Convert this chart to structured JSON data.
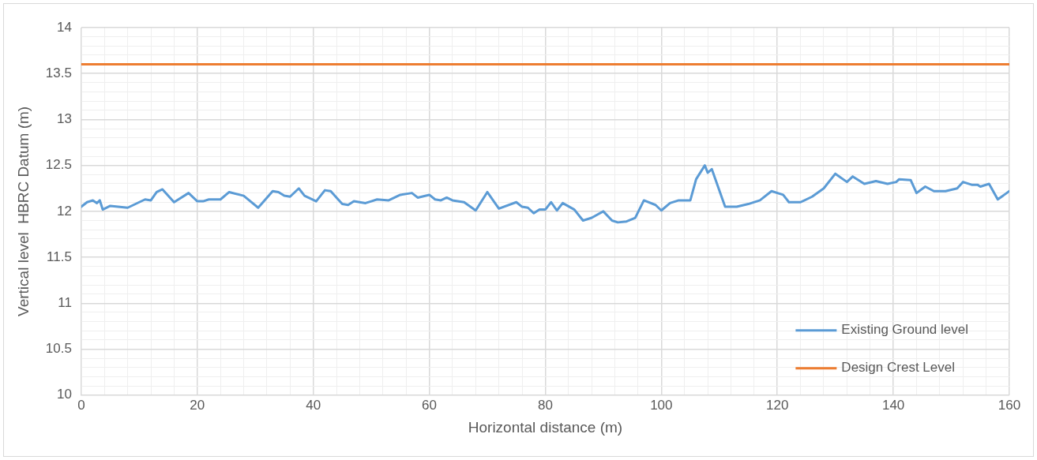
{
  "chart_data": {
    "type": "line",
    "xlabel": "Horizontal distance (m)",
    "ylabel": "Vertical level  HBRC Datum (m)",
    "xlim": [
      0,
      160
    ],
    "ylim": [
      10,
      14
    ],
    "xticks": [
      0,
      {
        "value": 4,
        "label": null
      },
      {
        "value": 8,
        "label": null
      },
      {
        "value": 12,
        "label": null
      },
      {
        "value": 16,
        "label": null
      },
      20,
      {
        "value": 24,
        "label": null
      },
      {
        "value": 28,
        "label": null
      },
      {
        "value": 32,
        "label": null
      },
      {
        "value": 36,
        "label": null
      },
      40,
      {
        "value": 44,
        "label": null
      },
      {
        "value": 48,
        "label": null
      },
      {
        "value": 52,
        "label": null
      },
      {
        "value": 56,
        "label": null
      },
      60,
      {
        "value": 64,
        "label": null
      },
      {
        "value": 68,
        "label": null
      },
      {
        "value": 72,
        "label": null
      },
      {
        "value": 76,
        "label": null
      },
      80,
      {
        "value": 84,
        "label": null
      },
      {
        "value": 88,
        "label": null
      },
      {
        "value": 92,
        "label": null
      },
      {
        "value": 96,
        "label": null
      },
      100,
      {
        "value": 104,
        "label": null
      },
      {
        "value": 108,
        "label": null
      },
      {
        "value": 112,
        "label": null
      },
      {
        "value": 116,
        "label": null
      },
      120,
      {
        "value": 124,
        "label": null
      },
      {
        "value": 128,
        "label": null
      },
      {
        "value": 132,
        "label": null
      },
      {
        "value": 136,
        "label": null
      },
      140,
      {
        "value": 144,
        "label": null
      },
      {
        "value": 148,
        "label": null
      },
      {
        "value": 152,
        "label": null
      },
      {
        "value": 156,
        "label": null
      },
      160
    ],
    "yticks": [
      10,
      {
        "value": 10.1,
        "label": null
      },
      {
        "value": 10.2,
        "label": null
      },
      {
        "value": 10.3,
        "label": null
      },
      {
        "value": 10.4,
        "label": null
      },
      10.5,
      {
        "value": 10.6,
        "label": null
      },
      {
        "value": 10.7,
        "label": null
      },
      {
        "value": 10.8,
        "label": null
      },
      {
        "value": 10.9,
        "label": null
      },
      11,
      {
        "value": 11.1,
        "label": null
      },
      {
        "value": 11.2,
        "label": null
      },
      {
        "value": 11.3,
        "label": null
      },
      {
        "value": 11.4,
        "label": null
      },
      11.5,
      {
        "value": 11.6,
        "label": null
      },
      {
        "value": 11.7,
        "label": null
      },
      {
        "value": 11.8,
        "label": null
      },
      {
        "value": 11.9,
        "label": null
      },
      12,
      {
        "value": 12.1,
        "label": null
      },
      {
        "value": 12.2,
        "label": null
      },
      {
        "value": 12.3,
        "label": null
      },
      {
        "value": 12.4,
        "label": null
      },
      12.5,
      {
        "value": 12.6,
        "label": null
      },
      {
        "value": 12.7,
        "label": null
      },
      {
        "value": 12.8,
        "label": null
      },
      {
        "value": 12.9,
        "label": null
      },
      13,
      {
        "value": 13.1,
        "label": null
      },
      {
        "value": 13.2,
        "label": null
      },
      {
        "value": 13.3,
        "label": null
      },
      {
        "value": 13.4,
        "label": null
      },
      13.5,
      {
        "value": 13.6,
        "label": null
      },
      {
        "value": 13.7,
        "label": null
      },
      {
        "value": 13.8,
        "label": null
      },
      {
        "value": 13.9,
        "label": null
      },
      14
    ],
    "grid": true,
    "legend": "bottom right",
    "marker": "none",
    "line_style": "solid",
    "series": [
      {
        "name": "Existing Ground level",
        "color": "#5b9bd5",
        "x": [
          0,
          1,
          2,
          2.7,
          3.2,
          3.7,
          5,
          8,
          10,
          11,
          12,
          13,
          14,
          16,
          18.5,
          20,
          21,
          22,
          24,
          25.5,
          28,
          30.5,
          33,
          34,
          35,
          36,
          37.5,
          38.5,
          40.5,
          42,
          43,
          45,
          46,
          47,
          49,
          50,
          51,
          53,
          55,
          57,
          58,
          60,
          61,
          62,
          63,
          64,
          66,
          68,
          70,
          72,
          75,
          76,
          77,
          78,
          79,
          80,
          81,
          82,
          83,
          85,
          86.5,
          88,
          90,
          91.5,
          92.5,
          94,
          95.5,
          97,
          99,
          100,
          101.5,
          103,
          105,
          106,
          107.5,
          108,
          108.7,
          111,
          113,
          115,
          117,
          119,
          121,
          122,
          124,
          126,
          128,
          130,
          132,
          133,
          135,
          137,
          139,
          140.5,
          141,
          143,
          144,
          145.5,
          147,
          149,
          151,
          152,
          153.5,
          154.5,
          155,
          156.5,
          158,
          160
        ],
        "values": [
          12.05,
          12.1,
          12.12,
          12.09,
          12.12,
          12.02,
          12.06,
          12.04,
          12.1,
          12.13,
          12.12,
          12.21,
          12.24,
          12.1,
          12.2,
          12.11,
          12.11,
          12.13,
          12.13,
          12.21,
          12.17,
          12.04,
          12.22,
          12.21,
          12.17,
          12.16,
          12.25,
          12.17,
          12.11,
          12.23,
          12.22,
          12.08,
          12.07,
          12.11,
          12.09,
          12.11,
          12.13,
          12.12,
          12.18,
          12.2,
          12.15,
          12.18,
          12.13,
          12.12,
          12.15,
          12.12,
          12.1,
          12.01,
          12.21,
          12.03,
          12.1,
          12.05,
          12.04,
          11.98,
          12.02,
          12.02,
          12.1,
          12.01,
          12.09,
          12.02,
          11.9,
          11.93,
          12.0,
          11.9,
          11.88,
          11.89,
          11.93,
          12.12,
          12.07,
          12.01,
          12.09,
          12.12,
          12.12,
          12.35,
          12.5,
          12.42,
          12.46,
          12.05,
          12.05,
          12.08,
          12.12,
          12.22,
          12.18,
          12.1,
          12.1,
          12.16,
          12.25,
          12.41,
          12.32,
          12.38,
          12.3,
          12.33,
          12.3,
          12.32,
          12.35,
          12.34,
          12.2,
          12.27,
          12.22,
          12.22,
          12.25,
          12.32,
          12.29,
          12.29,
          12.27,
          12.3,
          12.13,
          12.22
        ]
      },
      {
        "name": "Design Crest Level",
        "color": "#ed7d31",
        "x": [
          0,
          160
        ],
        "values": [
          13.6,
          13.6
        ]
      }
    ]
  }
}
